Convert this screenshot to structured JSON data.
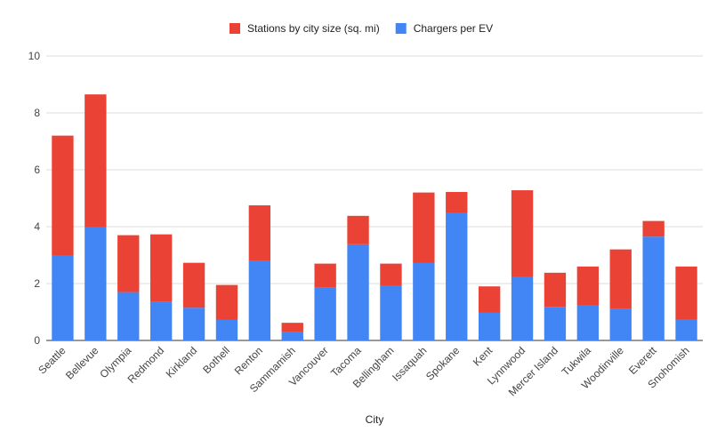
{
  "chart_data": {
    "type": "bar",
    "stacked": true,
    "title": "",
    "xlabel": "City",
    "ylabel": "",
    "ylim": [
      0,
      10
    ],
    "yticks": [
      0,
      2,
      4,
      6,
      8,
      10
    ],
    "grid": true,
    "legend_position": "top",
    "categories": [
      "Seattle",
      "Bellevue",
      "Olympia",
      "Redmond",
      "Kirkland",
      "Bothell",
      "Renton",
      "Sammamish",
      "Vancouver",
      "Tacoma",
      "Bellingham",
      "Issaquah",
      "Spokane",
      "Kent",
      "Lynnwood",
      "Mercer Island",
      "Tukwila",
      "Woodinville",
      "Everett",
      "Snohomish"
    ],
    "series": [
      {
        "name": "Chargers per EV",
        "color": "#4285F4",
        "values": [
          3.0,
          4.0,
          1.7,
          1.35,
          1.15,
          0.72,
          2.8,
          0.3,
          1.85,
          3.38,
          1.92,
          2.72,
          4.5,
          0.97,
          2.25,
          1.18,
          1.25,
          1.1,
          3.65,
          0.75
        ]
      },
      {
        "name": "Stations by city size (sq. mi)",
        "color": "#EA4335",
        "values": [
          4.2,
          4.65,
          2.0,
          2.38,
          1.58,
          1.23,
          1.95,
          0.32,
          0.85,
          1.0,
          0.78,
          2.48,
          0.72,
          0.93,
          3.03,
          1.2,
          1.35,
          2.1,
          0.55,
          1.85
        ]
      }
    ],
    "legend_order": [
      "Stations by city size (sq. mi)",
      "Chargers per EV"
    ]
  }
}
